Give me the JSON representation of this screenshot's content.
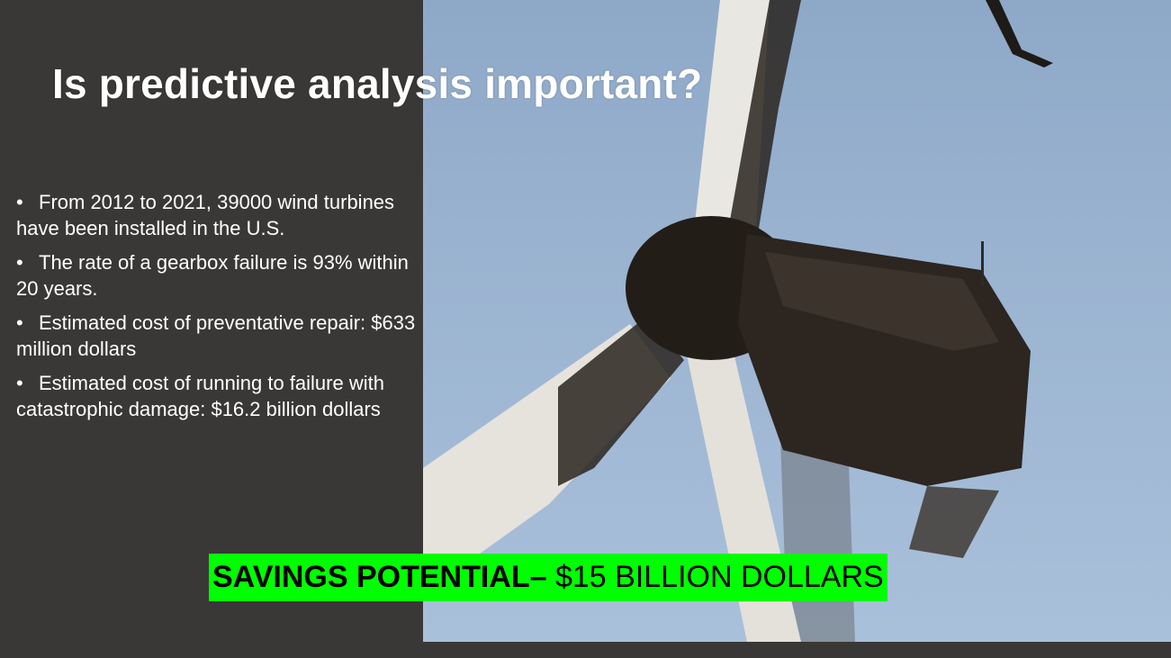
{
  "slide": {
    "title": "Is predictive analysis important?",
    "bullets": [
      "From 2012 to 2021, 39000 wind turbines have been installed in the U.S.",
      "The rate of a gearbox failure is 93% within 20 years.",
      "Estimated cost of preventative repair: $633 million dollars",
      "Estimated cost of running to failure with catastrophic damage:  $16.2 billion dollars"
    ],
    "bullet_marker": "•",
    "savings_label": "SAVINGS POTENTIAL–",
    "savings_value": " $15 BILLION DOLLARS"
  },
  "colors": {
    "background": "#3a3836",
    "sky": "#9ab3d0",
    "highlight": "#00ff00",
    "title_text": "#ffffff"
  },
  "image": {
    "subject": "burned-wind-turbine-photo"
  }
}
